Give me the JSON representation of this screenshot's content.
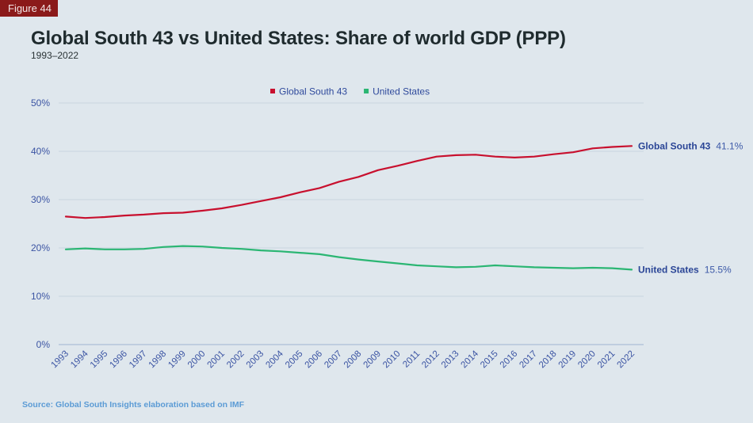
{
  "figure_label": "Figure 44",
  "title": "Global South 43 vs United States: Share of world GDP (PPP)",
  "subtitle": "1993–2022",
  "source": "Source: Global South Insights elaboration based on IMF",
  "colors": {
    "global_south": "#c8102e",
    "united_states": "#2bb673",
    "axis_text": "#3b54a3",
    "grid": "#c9d6e0"
  },
  "chart_data": {
    "type": "line",
    "title": "Global South 43 vs United States: Share of world GDP (PPP)",
    "subtitle": "1993–2022",
    "xlabel": "",
    "ylabel": "",
    "ylim": [
      0,
      50
    ],
    "y_ticks": [
      0,
      10,
      20,
      30,
      40,
      50
    ],
    "y_tick_labels": [
      "0%",
      "10%",
      "20%",
      "30%",
      "40%",
      "50%"
    ],
    "grid": true,
    "legend_position": "top-center",
    "x": [
      "1993",
      "1994",
      "1995",
      "1996",
      "1997",
      "1998",
      "1999",
      "2000",
      "2001",
      "2002",
      "2003",
      "2004",
      "2005",
      "2006",
      "2007",
      "2008",
      "2009",
      "2010",
      "2011",
      "2012",
      "2013",
      "2014",
      "2015",
      "2016",
      "2017",
      "2018",
      "2019",
      "2020",
      "2021",
      "2022"
    ],
    "series": [
      {
        "name": "Global South 43",
        "color": "#c8102e",
        "end_label": "41.1%",
        "values": [
          26.5,
          26.2,
          26.4,
          26.7,
          26.9,
          27.2,
          27.3,
          27.7,
          28.2,
          28.9,
          29.7,
          30.5,
          31.5,
          32.4,
          33.7,
          34.7,
          36.1,
          37.0,
          38.0,
          38.9,
          39.2,
          39.3,
          38.9,
          38.7,
          38.9,
          39.4,
          39.8,
          40.6,
          40.9,
          41.1
        ]
      },
      {
        "name": "United States",
        "color": "#2bb673",
        "end_label": "15.5%",
        "values": [
          19.7,
          19.9,
          19.7,
          19.7,
          19.8,
          20.2,
          20.4,
          20.3,
          20.0,
          19.8,
          19.5,
          19.3,
          19.0,
          18.7,
          18.1,
          17.6,
          17.2,
          16.8,
          16.4,
          16.2,
          16.0,
          16.1,
          16.4,
          16.2,
          16.0,
          15.9,
          15.8,
          15.9,
          15.8,
          15.5
        ]
      }
    ]
  }
}
